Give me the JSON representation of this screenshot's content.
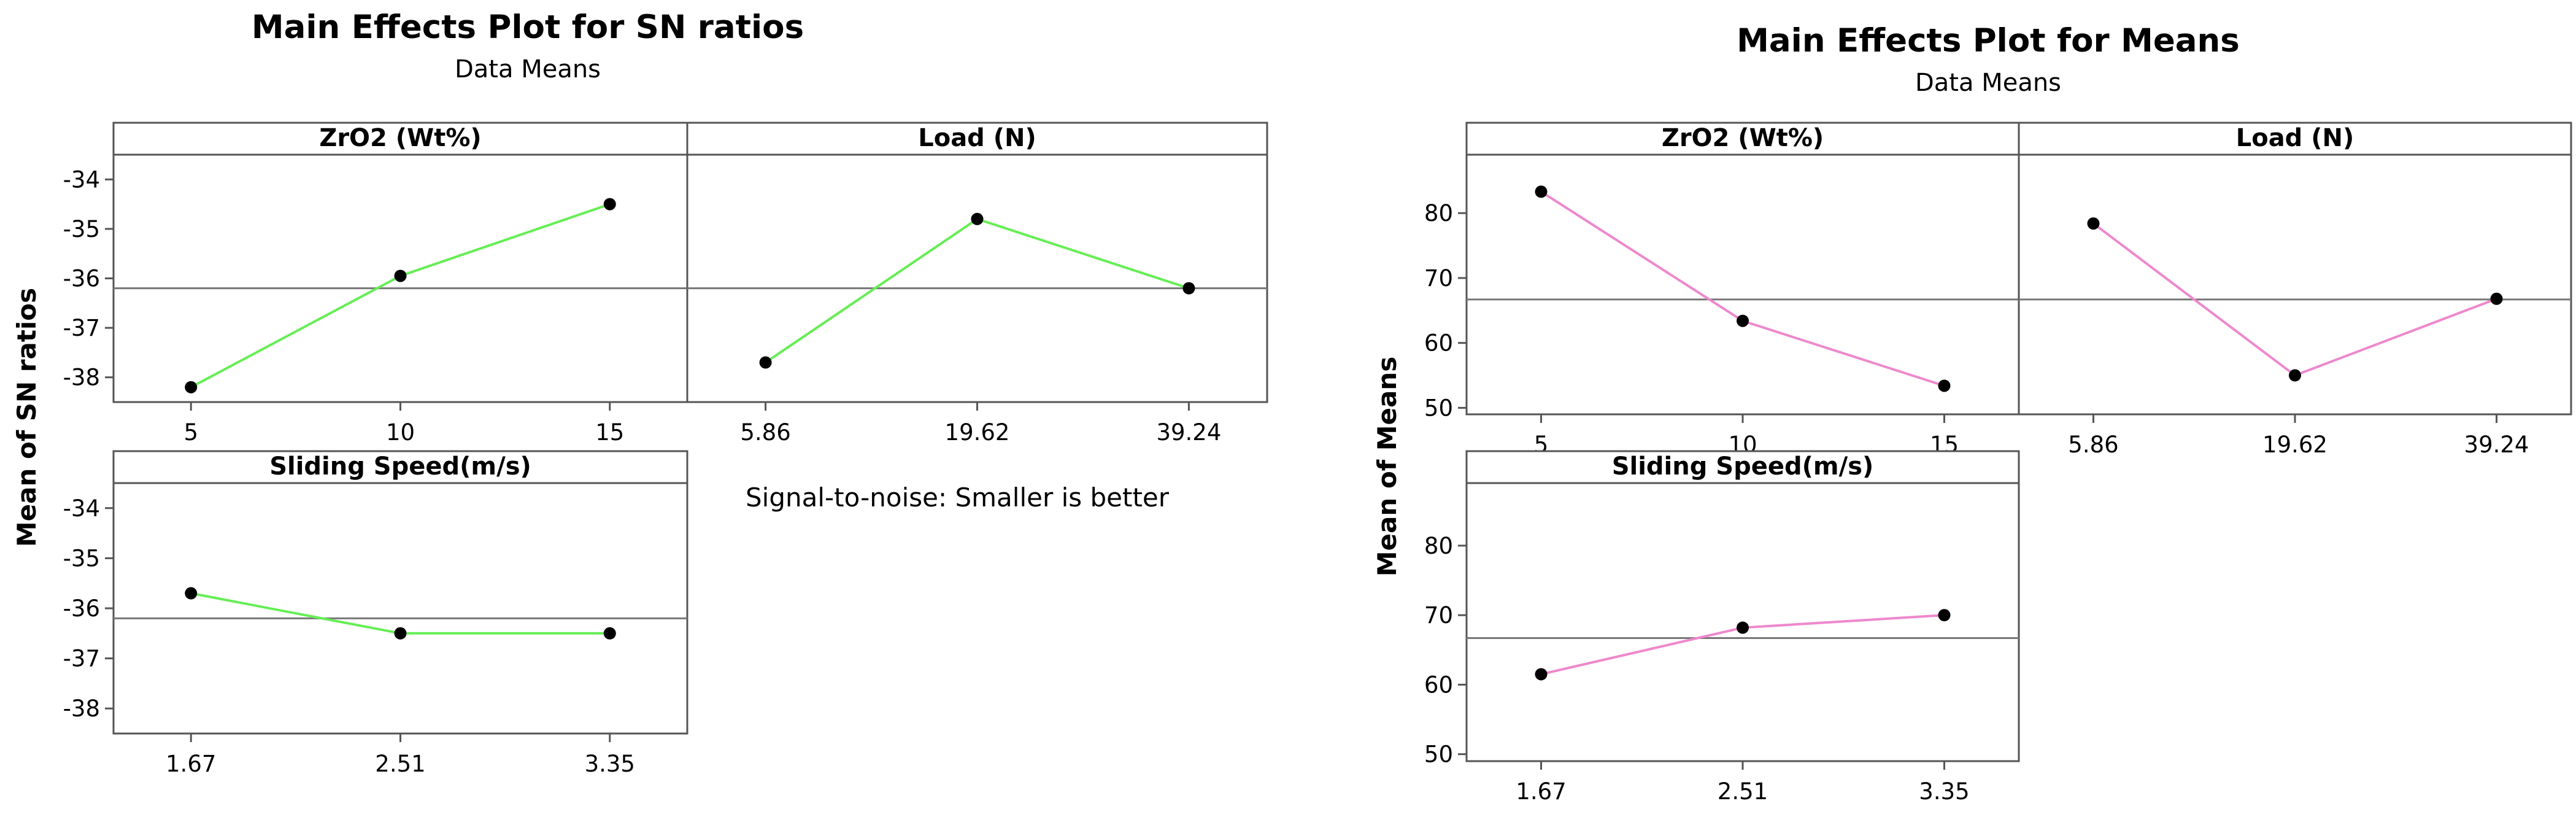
{
  "chart_data": [
    {
      "type": "line",
      "title": "Main Effects Plot for SN ratios",
      "subtitle": "Data Means",
      "ylabel": "Mean of SN ratios",
      "note": "Signal-to-noise: Smaller is better",
      "ylim": [
        -38.5,
        -33.5
      ],
      "yticks": [
        -34,
        -35,
        -36,
        -37,
        -38
      ],
      "reference_mean": -36.2,
      "line_color": "#66ee55",
      "panels": [
        {
          "name": "ZrO2 (Wt%)",
          "categories": [
            "5",
            "10",
            "15"
          ],
          "values": [
            -38.2,
            -35.95,
            -34.5
          ]
        },
        {
          "name": "Load (N)",
          "categories": [
            "5.86",
            "19.62",
            "39.24"
          ],
          "values": [
            -37.7,
            -34.8,
            -36.2
          ]
        },
        {
          "name": "Sliding Speed(m/s)",
          "categories": [
            "1.67",
            "2.51",
            "3.35"
          ],
          "values": [
            -35.7,
            -36.5,
            -36.5
          ]
        }
      ]
    },
    {
      "type": "line",
      "title": "Main Effects Plot for Means",
      "subtitle": "Data Means",
      "ylabel": "Mean of Means",
      "ylim": [
        49,
        89
      ],
      "yticks": [
        80,
        70,
        60,
        50
      ],
      "reference_mean": 66.7,
      "line_color": "#ee88cc",
      "panels": [
        {
          "name": "ZrO2 (Wt%)",
          "categories": [
            "5",
            "10",
            "15"
          ],
          "values": [
            83.3,
            63.4,
            53.4
          ]
        },
        {
          "name": "Load (N)",
          "categories": [
            "5.86",
            "19.62",
            "39.24"
          ],
          "values": [
            78.4,
            55.0,
            66.8
          ]
        },
        {
          "name": "Sliding Speed(m/s)",
          "categories": [
            "1.67",
            "2.51",
            "3.35"
          ],
          "values": [
            61.5,
            68.2,
            70.0
          ]
        }
      ]
    }
  ]
}
